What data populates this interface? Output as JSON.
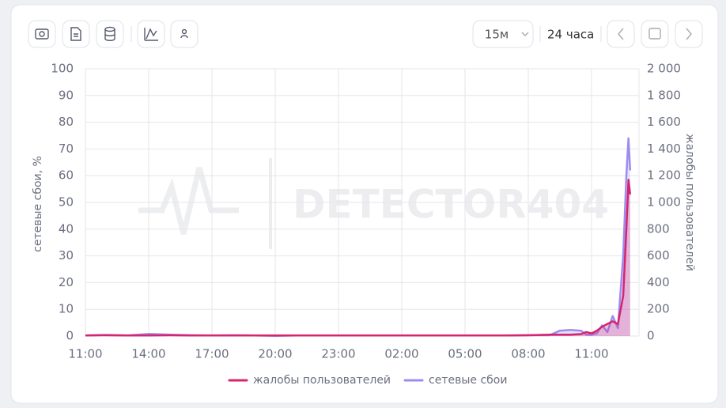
{
  "toolbar": {
    "interval": "15м",
    "period": "24 часа"
  },
  "watermark": "DETECTOR404",
  "chart_data": {
    "type": "line",
    "x": [
      0,
      1,
      2,
      3,
      4,
      5,
      6,
      7,
      8,
      9,
      10,
      11,
      12,
      13,
      14,
      15,
      16,
      17,
      18,
      19,
      20,
      21,
      22,
      22.5,
      23,
      23.5,
      23.75,
      24,
      24.25,
      24.5,
      24.75,
      25,
      25.25,
      25.5,
      25.65,
      25.75,
      25.83
    ],
    "series": [
      {
        "name": "жалобы пользователей",
        "color": "#d6246e",
        "axis": "y2",
        "values": [
          5,
          6,
          5,
          5,
          6,
          5,
          5,
          5,
          5,
          4,
          5,
          5,
          5,
          5,
          5,
          5,
          5,
          5,
          5,
          5,
          5,
          6,
          10,
          10,
          10,
          15,
          30,
          20,
          40,
          70,
          90,
          110,
          90,
          300,
          800,
          1170,
          1060
        ]
      },
      {
        "name": "сетевые сбои",
        "color": "#9b8cf0",
        "axis": "y",
        "values": [
          0.2,
          0.4,
          0.2,
          0.8,
          0.5,
          0.3,
          0.2,
          0.3,
          0.2,
          0.1,
          0.2,
          0.2,
          0.2,
          0.2,
          0.2,
          0.2,
          0.2,
          0.2,
          0.2,
          0.2,
          0.2,
          0.3,
          0.3,
          2,
          2.3,
          2,
          0.5,
          0.5,
          1,
          4,
          1.5,
          7.5,
          3,
          30,
          60,
          74,
          62
        ]
      }
    ],
    "xlim": [
      0,
      26.25
    ],
    "xticks": [
      {
        "value": 0,
        "label": "11:00"
      },
      {
        "value": 3,
        "label": "14:00"
      },
      {
        "value": 6,
        "label": "17:00"
      },
      {
        "value": 9,
        "label": "20:00"
      },
      {
        "value": 12,
        "label": "23:00"
      },
      {
        "value": 15,
        "label": "02:00"
      },
      {
        "value": 18,
        "label": "05:00"
      },
      {
        "value": 21,
        "label": "08:00"
      },
      {
        "value": 24,
        "label": "11:00"
      }
    ],
    "ylim": [
      0,
      100
    ],
    "yticks": [
      0,
      10,
      20,
      30,
      40,
      50,
      60,
      70,
      80,
      90,
      100
    ],
    "y2lim": [
      0,
      2000
    ],
    "y2ticks": [
      0,
      200,
      400,
      600,
      800,
      {
        "value": 1000,
        "label": "1 000"
      },
      {
        "value": 1200,
        "label": "1 200"
      },
      {
        "value": 1400,
        "label": "1 400"
      },
      {
        "value": 1600,
        "label": "1 600"
      },
      {
        "value": 1800,
        "label": "1 800"
      },
      {
        "value": 2000,
        "label": "2 000"
      }
    ],
    "ylabel": "сетевые сбои, %",
    "y2label": "жалобы пользователей",
    "grid": true,
    "legend": "bottom"
  }
}
